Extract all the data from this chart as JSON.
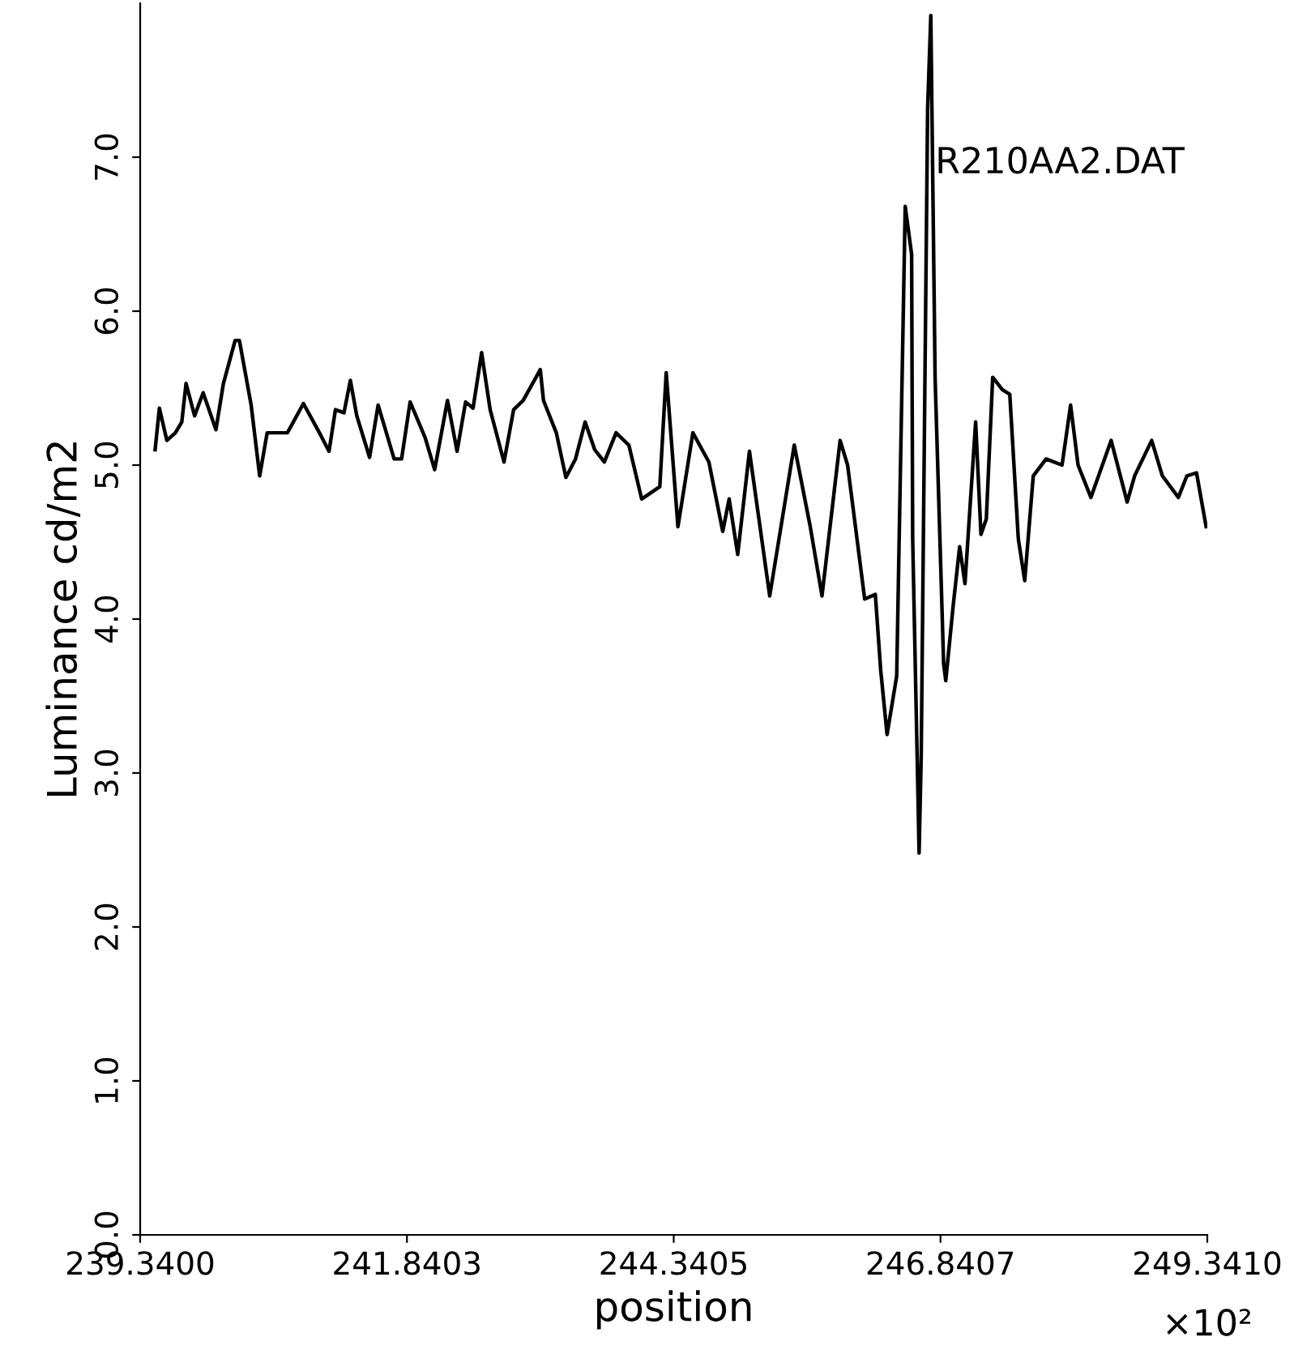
{
  "chart_data": {
    "type": "line",
    "xlabel": "position",
    "ylabel": "Luminance cd/m2",
    "annotations": [
      "R210AA2.DAT",
      "×10²"
    ],
    "xlim": [
      239.34,
      249.341
    ],
    "ylim": [
      0,
      8
    ],
    "xticks": [
      {
        "value": 239.34,
        "label": "239.3400"
      },
      {
        "value": 241.8403,
        "label": "241.8403"
      },
      {
        "value": 244.3405,
        "label": "244.3405"
      },
      {
        "value": 246.8407,
        "label": "246.8407"
      },
      {
        "value": 249.341,
        "label": "249.3410"
      }
    ],
    "yticks": [
      {
        "value": 0,
        "label": "0.0"
      },
      {
        "value": 1,
        "label": "1.0"
      },
      {
        "value": 2,
        "label": "2.0"
      },
      {
        "value": 3,
        "label": "3.0"
      },
      {
        "value": 4,
        "label": "4.0"
      },
      {
        "value": 5,
        "label": "5.0"
      },
      {
        "value": 6,
        "label": "6.0"
      },
      {
        "value": 7,
        "label": "7.0"
      }
    ],
    "grid": false,
    "legend": false,
    "marker": "none",
    "line_style": "solid",
    "series": [
      {
        "color": "#000000",
        "x": [
          239.48,
          239.52,
          239.59,
          239.67,
          239.73,
          239.77,
          239.85,
          239.93,
          240.05,
          240.12,
          240.23,
          240.27,
          240.38,
          240.46,
          240.53,
          240.72,
          240.87,
          241.02,
          241.11,
          241.17,
          241.25,
          241.31,
          241.37,
          241.49,
          241.57,
          241.72,
          241.79,
          241.87,
          242.01,
          242.1,
          242.22,
          242.31,
          242.39,
          242.46,
          242.54,
          242.62,
          242.75,
          242.84,
          242.93,
          243.09,
          243.12,
          243.24,
          243.33,
          243.42,
          243.51,
          243.6,
          243.69,
          243.8,
          243.92,
          244.04,
          244.21,
          244.27,
          244.38,
          244.52,
          244.67,
          244.8,
          244.86,
          244.94,
          245.05,
          245.24,
          245.47,
          245.62,
          245.73,
          245.9,
          245.97,
          246.13,
          246.23,
          246.28,
          246.34,
          246.43,
          246.51,
          246.57,
          246.58,
          246.63,
          246.64,
          246.66,
          246.72,
          246.75,
          246.79,
          246.87,
          246.89,
          246.96,
          247.02,
          247.07,
          247.17,
          247.22,
          247.27,
          247.33,
          247.42,
          247.49,
          247.57,
          247.63,
          247.71,
          247.83,
          247.98,
          248.06,
          248.13,
          248.25,
          248.44,
          248.59,
          248.66,
          248.82,
          248.92,
          249.07,
          249.15,
          249.24,
          249.33
        ],
        "values": [
          5.1,
          5.37,
          5.16,
          5.21,
          5.28,
          5.53,
          5.32,
          5.47,
          5.23,
          5.53,
          5.81,
          5.81,
          5.39,
          4.93,
          5.21,
          5.21,
          5.4,
          5.21,
          5.09,
          5.36,
          5.34,
          5.55,
          5.32,
          5.05,
          5.39,
          5.04,
          5.04,
          5.41,
          5.18,
          4.97,
          5.42,
          5.09,
          5.41,
          5.37,
          5.73,
          5.36,
          5.02,
          5.36,
          5.42,
          5.62,
          5.42,
          5.21,
          4.92,
          5.04,
          5.28,
          5.1,
          5.02,
          5.21,
          5.13,
          4.78,
          4.86,
          5.6,
          4.6,
          5.21,
          5.02,
          4.57,
          4.78,
          4.42,
          5.09,
          4.15,
          5.13,
          4.6,
          4.15,
          5.16,
          5.0,
          4.13,
          4.16,
          3.67,
          3.25,
          3.63,
          6.68,
          6.37,
          4.52,
          2.83,
          2.48,
          3.11,
          7.32,
          7.92,
          5.57,
          3.71,
          3.6,
          4.09,
          4.47,
          4.23,
          5.28,
          4.55,
          4.65,
          5.57,
          5.49,
          5.46,
          4.52,
          4.25,
          4.93,
          5.04,
          5.0,
          5.39,
          5.0,
          4.79,
          5.16,
          4.76,
          4.93,
          5.16,
          4.93,
          4.79,
          4.93,
          4.95,
          4.6
        ]
      }
    ]
  }
}
